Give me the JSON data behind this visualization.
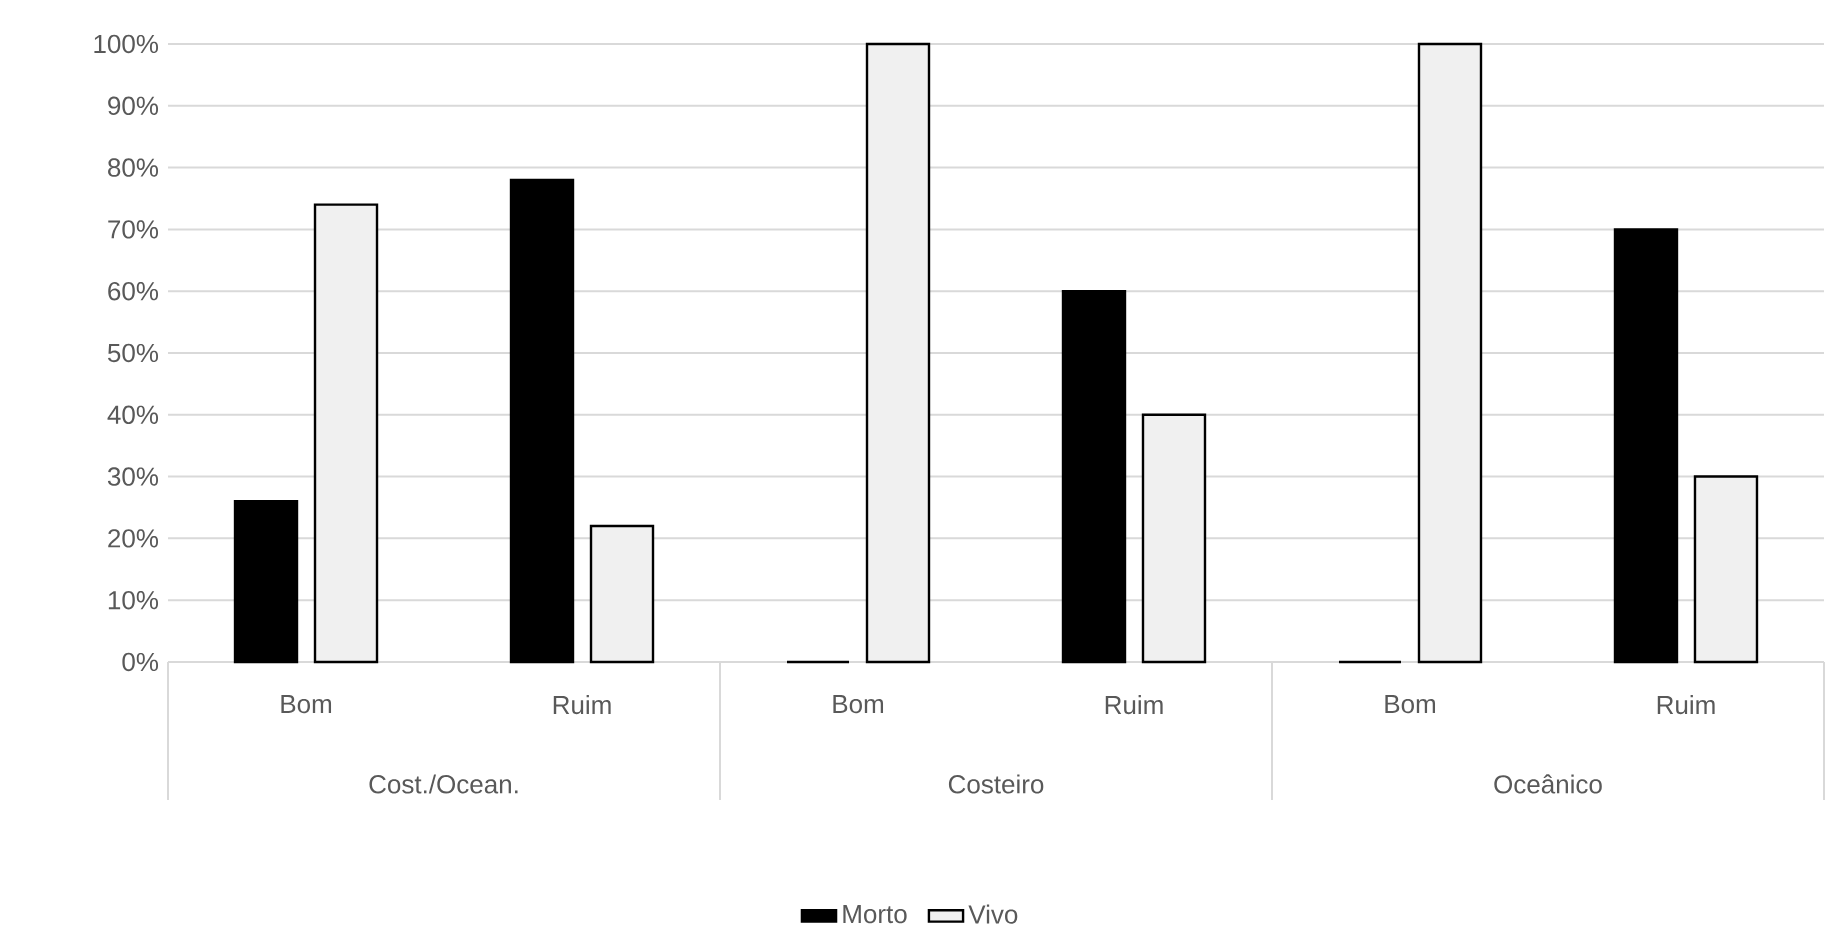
{
  "chart_data": {
    "type": "bar",
    "categories": [
      "Bom",
      "Ruim",
      "Bom",
      "Ruim",
      "Bom",
      "Ruim"
    ],
    "annotations": [
      "Cost./Ocean.",
      "Costeiro",
      "Oceânico"
    ],
    "series": [
      {
        "name": "Morto",
        "color": "#000000",
        "values": [
          26,
          78,
          0,
          60,
          0,
          70
        ]
      },
      {
        "name": "Vivo",
        "color": "#f0f0f0",
        "values": [
          74,
          22,
          100,
          40,
          100,
          30
        ]
      }
    ],
    "ylim": [
      0,
      100
    ],
    "yticks": [
      {
        "value": 0,
        "label": "0%"
      },
      {
        "value": 10,
        "label": "10%"
      },
      {
        "value": 20,
        "label": "20%"
      },
      {
        "value": 30,
        "label": "30%"
      },
      {
        "value": 40,
        "label": "40%"
      },
      {
        "value": 50,
        "label": "50%"
      },
      {
        "value": 60,
        "label": "60%"
      },
      {
        "value": 70,
        "label": "70%"
      },
      {
        "value": 80,
        "label": "80%"
      },
      {
        "value": 90,
        "label": "90%"
      },
      {
        "value": 100,
        "label": "100%"
      }
    ],
    "grid": "y",
    "legend": "bottom"
  }
}
